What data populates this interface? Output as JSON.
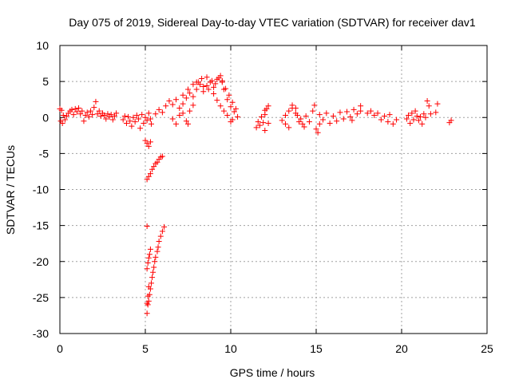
{
  "chart_data": {
    "type": "scatter",
    "title": "Day 075 of 2019, Sidereal Day-to-day VTEC variation (SDTVAR) for receiver dav1",
    "xlabel": "GPS time / hours",
    "ylabel": "SDTVAR / TECUs",
    "xlim": [
      0,
      25
    ],
    "ylim": [
      -30,
      10
    ],
    "xticks": [
      "0",
      "5",
      "10",
      "15",
      "20",
      "25"
    ],
    "yticks": [
      "10",
      "5",
      "0",
      "-5",
      "-10",
      "-15",
      "-20",
      "-25",
      "-30"
    ],
    "grid": true,
    "marker": "+",
    "color": "#ff0000",
    "series": [
      {
        "name": "dav1",
        "points": [
          [
            0.0,
            1.2
          ],
          [
            0.05,
            -0.5
          ],
          [
            0.1,
            1.0
          ],
          [
            0.15,
            -0.8
          ],
          [
            0.2,
            0.3
          ],
          [
            0.3,
            -0.3
          ],
          [
            0.4,
            0.2
          ],
          [
            0.5,
            0.6
          ],
          [
            0.6,
            0.9
          ],
          [
            0.7,
            1.1
          ],
          [
            0.8,
            0.4
          ],
          [
            0.9,
            1.2
          ],
          [
            1.0,
            0.8
          ],
          [
            1.1,
            1.3
          ],
          [
            1.2,
            0.5
          ],
          [
            1.3,
            0.9
          ],
          [
            1.4,
            -0.5
          ],
          [
            1.5,
            0.3
          ],
          [
            1.6,
            0.7
          ],
          [
            1.7,
            0.1
          ],
          [
            1.8,
            0.9
          ],
          [
            1.9,
            0.4
          ],
          [
            2.0,
            1.4
          ],
          [
            2.1,
            2.2
          ],
          [
            2.2,
            0.5
          ],
          [
            2.3,
            0.9
          ],
          [
            2.4,
            0.2
          ],
          [
            2.5,
            0.6
          ],
          [
            2.6,
            0.3
          ],
          [
            2.7,
            -0.2
          ],
          [
            2.8,
            0.5
          ],
          [
            2.9,
            0.1
          ],
          [
            3.0,
            0.4
          ],
          [
            3.1,
            -0.3
          ],
          [
            3.2,
            0.2
          ],
          [
            3.3,
            0.6
          ],
          [
            3.7,
            -0.3
          ],
          [
            3.8,
            0.2
          ],
          [
            3.9,
            -0.8
          ],
          [
            4.0,
            0.1
          ],
          [
            4.1,
            -0.5
          ],
          [
            4.2,
            -1.2
          ],
          [
            4.3,
            0.0
          ],
          [
            4.4,
            -0.6
          ],
          [
            4.5,
            0.3
          ],
          [
            4.6,
            -0.2
          ],
          [
            4.7,
            -1.5
          ],
          [
            4.8,
            0.4
          ],
          [
            4.9,
            -0.8
          ],
          [
            5.0,
            0.0
          ],
          [
            5.1,
            -0.4
          ],
          [
            5.2,
            0.6
          ],
          [
            5.3,
            -0.2
          ],
          [
            5.35,
            -0.9
          ],
          [
            5.0,
            -3.2
          ],
          [
            5.1,
            -3.6
          ],
          [
            5.2,
            -4.0
          ],
          [
            5.3,
            -3.4
          ],
          [
            5.1,
            -8.6
          ],
          [
            5.2,
            -8.2
          ],
          [
            5.3,
            -7.8
          ],
          [
            5.4,
            -7.2
          ],
          [
            5.5,
            -6.8
          ],
          [
            5.6,
            -6.4
          ],
          [
            5.7,
            -6.2
          ],
          [
            5.8,
            -5.8
          ],
          [
            5.9,
            -5.5
          ],
          [
            6.0,
            -5.4
          ],
          [
            5.1,
            -15.1
          ],
          [
            5.1,
            -27.2
          ],
          [
            5.15,
            -26.0
          ],
          [
            5.2,
            -25.5
          ],
          [
            5.25,
            -24.6
          ],
          [
            5.3,
            -23.8
          ],
          [
            5.35,
            -23.0
          ],
          [
            5.4,
            -22.2
          ],
          [
            5.45,
            -21.5
          ],
          [
            5.5,
            -20.8
          ],
          [
            5.55,
            -20.0
          ],
          [
            5.6,
            -19.4
          ],
          [
            5.7,
            -18.6
          ],
          [
            5.75,
            -18.0
          ],
          [
            5.8,
            -17.2
          ],
          [
            5.9,
            -16.5
          ],
          [
            6.0,
            -15.8
          ],
          [
            6.1,
            -15.2
          ],
          [
            5.1,
            -21.0
          ],
          [
            5.15,
            -20.2
          ],
          [
            5.2,
            -19.5
          ],
          [
            5.25,
            -19.0
          ],
          [
            5.3,
            -18.3
          ],
          [
            5.1,
            -25.8
          ],
          [
            5.15,
            -24.8
          ],
          [
            5.2,
            -23.5
          ],
          [
            5.6,
            0.5
          ],
          [
            5.8,
            1.1
          ],
          [
            6.0,
            0.7
          ],
          [
            6.2,
            1.6
          ],
          [
            6.4,
            2.3
          ],
          [
            6.6,
            1.8
          ],
          [
            6.8,
            2.5
          ],
          [
            7.0,
            1.3
          ],
          [
            7.2,
            0.6
          ],
          [
            7.4,
            -0.5
          ],
          [
            7.5,
            -0.9
          ],
          [
            7.6,
            0.9
          ],
          [
            7.8,
            1.7
          ],
          [
            6.6,
            -0.2
          ],
          [
            6.8,
            -0.9
          ],
          [
            7.0,
            0.3
          ],
          [
            7.2,
            1.9
          ],
          [
            7.4,
            2.7
          ],
          [
            7.6,
            3.4
          ],
          [
            7.8,
            2.9
          ],
          [
            8.0,
            3.9
          ],
          [
            8.2,
            4.6
          ],
          [
            8.4,
            3.6
          ],
          [
            8.6,
            4.4
          ],
          [
            8.8,
            4.9
          ],
          [
            9.0,
            4.2
          ],
          [
            9.2,
            5.3
          ],
          [
            9.4,
            5.8
          ],
          [
            9.5,
            5.1
          ],
          [
            9.6,
            3.9
          ],
          [
            9.8,
            2.5
          ],
          [
            10.0,
            1.5
          ],
          [
            10.2,
            0.8
          ],
          [
            10.1,
            -0.3
          ],
          [
            7.2,
            3.1
          ],
          [
            7.5,
            3.9
          ],
          [
            7.8,
            4.6
          ],
          [
            8.1,
            4.9
          ],
          [
            8.4,
            4.3
          ],
          [
            8.7,
            3.9
          ],
          [
            9.0,
            3.3
          ],
          [
            9.2,
            2.4
          ],
          [
            9.4,
            1.6
          ],
          [
            9.6,
            0.9
          ],
          [
            9.8,
            0.3
          ],
          [
            10.0,
            -0.6
          ],
          [
            8.0,
            4.9
          ],
          [
            8.3,
            5.4
          ],
          [
            8.6,
            5.6
          ],
          [
            8.9,
            5.1
          ],
          [
            9.1,
            4.7
          ],
          [
            9.3,
            5.5
          ],
          [
            9.5,
            4.9
          ],
          [
            9.7,
            4.0
          ],
          [
            9.9,
            3.1
          ],
          [
            10.1,
            2.1
          ],
          [
            10.3,
            1.2
          ],
          [
            10.4,
            0.1
          ],
          [
            11.5,
            -1.4
          ],
          [
            11.6,
            -0.6
          ],
          [
            11.7,
            -1.1
          ],
          [
            11.8,
            0.1
          ],
          [
            11.9,
            -0.7
          ],
          [
            12.0,
            -1.8
          ],
          [
            12.2,
            -0.8
          ],
          [
            12.0,
            0.4
          ],
          [
            12.0,
            1.0
          ],
          [
            12.2,
            1.6
          ],
          [
            12.1,
            1.2
          ],
          [
            13.0,
            -0.4
          ],
          [
            13.2,
            -0.9
          ],
          [
            13.4,
            -1.4
          ],
          [
            13.6,
            1.7
          ],
          [
            13.8,
            1.3
          ],
          [
            13.9,
            0.3
          ],
          [
            14.0,
            -0.6
          ],
          [
            14.1,
            -0.2
          ],
          [
            14.2,
            -0.9
          ],
          [
            14.3,
            -1.3
          ],
          [
            14.4,
            0.2
          ],
          [
            14.6,
            -0.6
          ],
          [
            14.8,
            0.9
          ],
          [
            14.9,
            1.7
          ],
          [
            15.0,
            -1.6
          ],
          [
            15.1,
            -2.1
          ],
          [
            15.2,
            -0.9
          ],
          [
            13.2,
            0.3
          ],
          [
            13.4,
            0.9
          ],
          [
            13.6,
            1.3
          ],
          [
            13.8,
            0.6
          ],
          [
            15.2,
            0.4
          ],
          [
            15.4,
            -0.3
          ],
          [
            15.6,
            0.6
          ],
          [
            15.8,
            -0.8
          ],
          [
            16.0,
            0.2
          ],
          [
            16.2,
            -0.5
          ],
          [
            16.4,
            0.7
          ],
          [
            16.6,
            -0.2
          ],
          [
            16.8,
            0.8
          ],
          [
            17.0,
            0.1
          ],
          [
            17.1,
            -0.4
          ],
          [
            17.2,
            1.1
          ],
          [
            17.4,
            0.5
          ],
          [
            17.6,
            1.6
          ],
          [
            17.6,
            0.9
          ],
          [
            18.0,
            0.6
          ],
          [
            18.2,
            0.9
          ],
          [
            18.4,
            0.3
          ],
          [
            18.6,
            0.6
          ],
          [
            18.8,
            -0.3
          ],
          [
            19.0,
            0.2
          ],
          [
            19.2,
            -0.6
          ],
          [
            19.3,
            0.4
          ],
          [
            19.5,
            -0.9
          ],
          [
            19.7,
            -0.3
          ],
          [
            20.3,
            -0.2
          ],
          [
            20.4,
            0.3
          ],
          [
            20.5,
            -0.8
          ],
          [
            20.6,
            0.6
          ],
          [
            20.7,
            -0.3
          ],
          [
            20.8,
            0.9
          ],
          [
            20.9,
            0.2
          ],
          [
            21.0,
            -0.4
          ],
          [
            21.1,
            0.1
          ],
          [
            21.2,
            -0.9
          ],
          [
            21.3,
            0.5
          ],
          [
            21.4,
            0.0
          ],
          [
            21.5,
            2.3
          ],
          [
            21.6,
            1.6
          ],
          [
            21.7,
            0.5
          ],
          [
            22.0,
            0.7
          ],
          [
            22.1,
            1.9
          ],
          [
            22.8,
            -0.7
          ],
          [
            22.9,
            -0.4
          ]
        ]
      }
    ]
  }
}
